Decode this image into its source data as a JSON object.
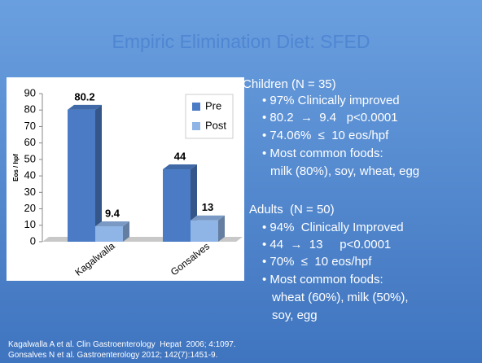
{
  "chart_data": {
    "type": "bar",
    "categories": [
      "Kagalwalla",
      "Gonsalves"
    ],
    "series": [
      {
        "name": "Pre",
        "color": "#4a7bc4",
        "values": [
          80.2,
          44
        ]
      },
      {
        "name": "Post",
        "color": "#8fb4e6",
        "values": [
          9.4,
          13
        ]
      }
    ],
    "y_label": "Eos / hpf",
    "ylim": [
      0,
      90
    ],
    "yticks": [
      0,
      10,
      20,
      30,
      40,
      50,
      60,
      70,
      80,
      90
    ],
    "legend": "upper right"
  },
  "slide": {
    "title": "Empiric  Elimination Diet: SFED",
    "children": {
      "heading": "Children (N = 35)",
      "bullets": [
        "97% Clinically improved",
        "80.2  →  9.4   p<0.0001",
        "74.06%  ≤  10 eos/hpf",
        "Most common foods:"
      ],
      "continuation": [
        "milk (80%), soy, wheat, egg"
      ]
    },
    "adults": {
      "heading": "Adults  (N = 50)",
      "bullets": [
        "94%  Clinically Improved",
        "44  →  13     p<0.0001",
        "70%  ≤  10 eos/hpf",
        "Most common foods:"
      ],
      "continuation": [
        "wheat (60%), milk (50%),",
        "soy, egg"
      ]
    },
    "references": [
      "Kagalwalla A et al. Clin Gastroenterology  Hepat  2006; 4:1097.",
      "Gonsalves N et al. Gastroenterology 2012; 142(7):1451-9."
    ]
  }
}
